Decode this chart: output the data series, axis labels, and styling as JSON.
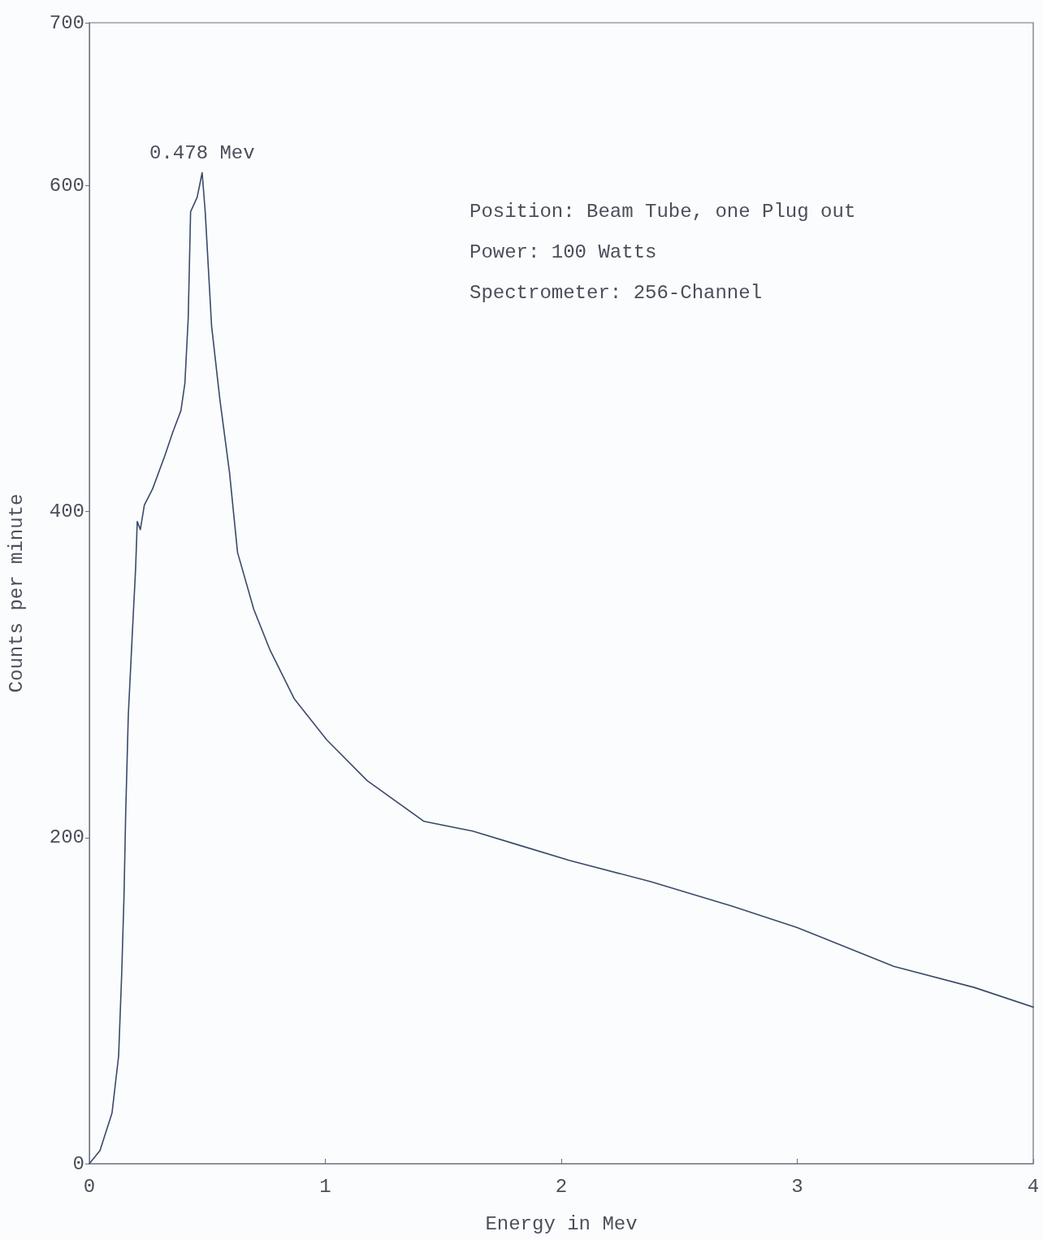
{
  "chart_data": {
    "type": "line",
    "xlabel": "Energy in Mev",
    "ylabel": "Counts per minute",
    "x": [
      0,
      0.045,
      0.096,
      0.124,
      0.137,
      0.147,
      0.154,
      0.165,
      0.182,
      0.196,
      0.203,
      0.216,
      0.233,
      0.268,
      0.319,
      0.354,
      0.388,
      0.405,
      0.419,
      0.429,
      0.457,
      0.478,
      0.491,
      0.518,
      0.553,
      0.594,
      0.628,
      0.697,
      0.766,
      0.869,
      1.006,
      1.177,
      1.418,
      1.624,
      1.83,
      2.036,
      2.379,
      2.722,
      2.997,
      3.409,
      3.752,
      4.0
    ],
    "series": [
      {
        "color": "#3a4a6a",
        "values": [
          0,
          8,
          31,
          66,
          116,
          165,
          215,
          275,
          325,
          365,
          394,
          389,
          404,
          414,
          434,
          449,
          462,
          479,
          519,
          584,
          593,
          608,
          584,
          514,
          469,
          424,
          375,
          340,
          315,
          285,
          260,
          235,
          210,
          204,
          195,
          186,
          173,
          158,
          145,
          121,
          108,
          96
        ]
      }
    ],
    "xlim": [
      0,
      4
    ],
    "xticks": [
      0,
      1,
      2,
      3,
      4
    ],
    "ylim": [
      0,
      700
    ],
    "yticks": [
      0,
      200,
      400,
      600,
      700
    ],
    "annotations": [
      {
        "text": "0.478 Mev",
        "x": 0.478,
        "y": 608
      },
      "Position: Beam Tube, one Plug out",
      "Power: 100 Watts",
      "Spectrometer: 256-Channel"
    ],
    "grid": false,
    "marker": "none",
    "line_style": "solid"
  }
}
